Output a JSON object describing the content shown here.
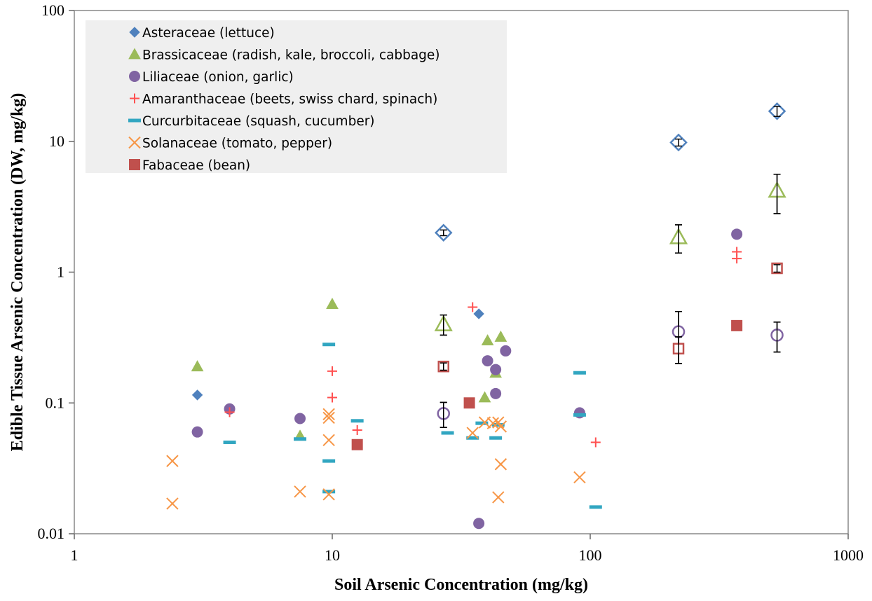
{
  "chart_data": {
    "type": "scatter",
    "xlabel": "Soil Arsenic Concentration (mg/kg)",
    "ylabel": "Edible Tissue Arsenic Concentration (DW, mg/kg)",
    "x_scale": "log",
    "y_scale": "log",
    "xlim": [
      1,
      1000
    ],
    "ylim": [
      0.01,
      100
    ],
    "x_ticks": [
      "1",
      "10",
      "100",
      "1000"
    ],
    "y_ticks": [
      "0.01",
      "0.1",
      "1",
      "10",
      "100"
    ],
    "grid": false,
    "legend_position": "top-left",
    "series": [
      {
        "name": "Asteraceae (lettuce)",
        "marker": "diamond",
        "color": "#4f81bd",
        "points": [
          [
            3,
            0.115
          ],
          [
            37,
            0.48
          ]
        ],
        "means": [
          [
            27,
            2.0,
            0.1
          ],
          [
            220,
            9.8,
            0.6
          ],
          [
            530,
            17,
            1.5
          ]
        ]
      },
      {
        "name": "Brassicaceae (radish, kale, broccoli, cabbage)",
        "marker": "triangle",
        "color": "#9bbb59",
        "points": [
          [
            3,
            0.19
          ],
          [
            7.5,
            0.056
          ],
          [
            10,
            0.57
          ],
          [
            39,
            0.11
          ],
          [
            40,
            0.3
          ],
          [
            43,
            0.17
          ],
          [
            45,
            0.32
          ]
        ],
        "means": [
          [
            27,
            0.4,
            0.07
          ],
          [
            220,
            1.85,
            0.45
          ],
          [
            530,
            4.2,
            1.4
          ]
        ]
      },
      {
        "name": "Liliaceae (onion, garlic)",
        "marker": "circle",
        "color": "#8064a2",
        "points": [
          [
            3,
            0.06
          ],
          [
            4,
            0.09
          ],
          [
            7.5,
            0.076
          ],
          [
            37,
            0.012
          ],
          [
            40,
            0.21
          ],
          [
            43,
            0.18
          ],
          [
            43,
            0.118
          ],
          [
            47,
            0.25
          ],
          [
            91,
            0.084
          ],
          [
            370,
            1.95
          ]
        ],
        "means": [
          [
            27,
            0.083,
            0.018
          ],
          [
            220,
            0.35,
            0.15
          ],
          [
            530,
            0.33,
            0.085
          ]
        ]
      },
      {
        "name": "Amaranthaceae (beets, swiss chard, spinach)",
        "marker": "plus",
        "color": "#ff5050",
        "points": [
          [
            4,
            0.085
          ],
          [
            10,
            0.175
          ],
          [
            10,
            0.11
          ],
          [
            12.5,
            0.062
          ],
          [
            35,
            0.54
          ],
          [
            105,
            0.05
          ],
          [
            370,
            1.43
          ],
          [
            370,
            1.27
          ]
        ],
        "means": []
      },
      {
        "name": "Curcurbitaceae (squash, cucumber)",
        "marker": "dash",
        "color": "#31a6c1",
        "points": [
          [
            4,
            0.05
          ],
          [
            7.5,
            0.053
          ],
          [
            9.7,
            0.28
          ],
          [
            9.7,
            0.036
          ],
          [
            9.7,
            0.021
          ],
          [
            12.5,
            0.073
          ],
          [
            28,
            0.059
          ],
          [
            35,
            0.054
          ],
          [
            38,
            0.07
          ],
          [
            43,
            0.054
          ],
          [
            44,
            0.068
          ],
          [
            91,
            0.17
          ],
          [
            91,
            0.081
          ],
          [
            105,
            0.016
          ]
        ],
        "means": []
      },
      {
        "name": "Solanaceae (tomato, pepper)",
        "marker": "x",
        "color": "#f79646",
        "points": [
          [
            2.4,
            0.036
          ],
          [
            2.4,
            0.017
          ],
          [
            7.5,
            0.021
          ],
          [
            9.7,
            0.082
          ],
          [
            9.7,
            0.077
          ],
          [
            9.7,
            0.052
          ],
          [
            9.7,
            0.02
          ],
          [
            35,
            0.059
          ],
          [
            39,
            0.071
          ],
          [
            42,
            0.07
          ],
          [
            44,
            0.071
          ],
          [
            44,
            0.019
          ],
          [
            45,
            0.066
          ],
          [
            45,
            0.034
          ],
          [
            91,
            0.027
          ]
        ],
        "means": []
      },
      {
        "name": "Fabaceae (bean)",
        "marker": "square",
        "color": "#c0504d",
        "points": [
          [
            12.5,
            0.048
          ],
          [
            34,
            0.1
          ],
          [
            370,
            0.39
          ]
        ],
        "means": [
          [
            27,
            0.19,
            0.012
          ],
          [
            220,
            0.26,
            0.06
          ],
          [
            530,
            1.07,
            0.07
          ]
        ]
      }
    ]
  }
}
